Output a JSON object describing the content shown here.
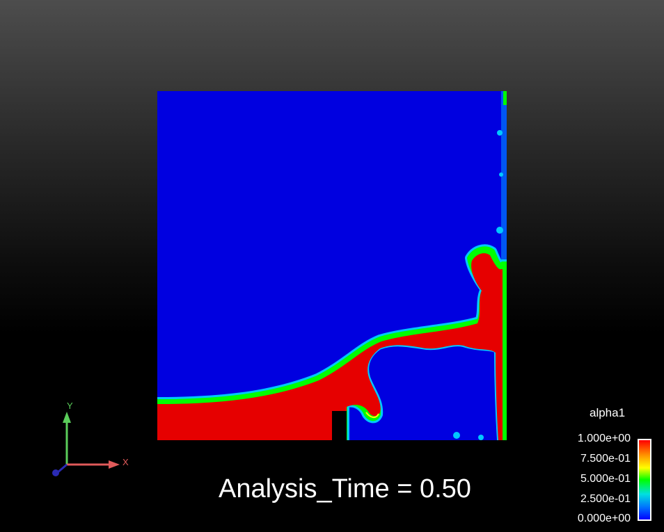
{
  "field": {
    "variable": "alpha1",
    "colors": {
      "liquid": "#e60000",
      "gas": "#0000e0",
      "obstacle": "#000000",
      "interface_mid": "#00ff00",
      "interface_outer": "#00c8ff",
      "interface_inner": "#ffff00"
    }
  },
  "axes": {
    "x_label": "X",
    "y_label": "Y",
    "x_color": "#e05a5a",
    "y_color": "#5acd5a",
    "z_color": "#2a2ab4"
  },
  "time_label": "Analysis_Time = 0.50",
  "legend": {
    "title": "alpha1",
    "ticks": [
      "1.000e+00",
      "7.500e-01",
      "5.000e-01",
      "2.500e-01",
      "0.000e+00"
    ]
  }
}
